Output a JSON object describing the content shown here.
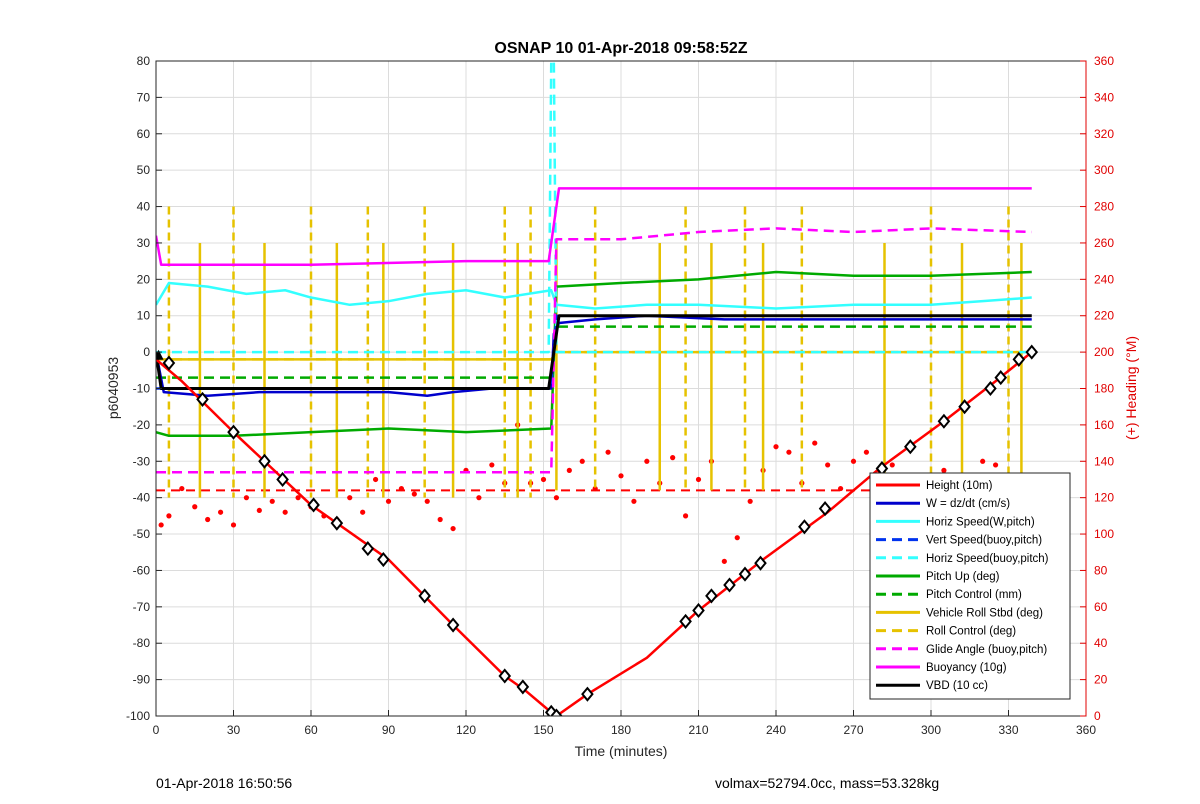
{
  "chart_data": {
    "type": "line",
    "title": "OSNAP 10 01-Apr-2018 09:58:52Z",
    "xlabel": "Time (minutes)",
    "ylabel_left": "p6040953",
    "ylabel_right": "(+) Heading (°M)",
    "xlim": [
      0,
      360
    ],
    "ylim_left": [
      -100,
      80
    ],
    "ylim_right": [
      0,
      360
    ],
    "xticks": [
      0,
      30,
      60,
      90,
      120,
      150,
      180,
      210,
      240,
      270,
      300,
      330,
      360
    ],
    "yticks_left": [
      80,
      70,
      60,
      50,
      40,
      30,
      20,
      10,
      0,
      -10,
      -20,
      -30,
      -40,
      -50,
      -60,
      -70,
      -80,
      -90,
      -100
    ],
    "yticks_right": [
      360,
      340,
      320,
      300,
      280,
      260,
      240,
      220,
      200,
      180,
      160,
      140,
      120,
      100,
      80,
      60,
      40,
      20,
      0
    ],
    "grid": true,
    "legend_position": "bottom-right",
    "series": [
      {
        "name": "Height (10m)",
        "color": "#ff0000",
        "style": "solid",
        "x": [
          0,
          10,
          30,
          60,
          90,
          115,
          135,
          143,
          153,
          155,
          167,
          190,
          210,
          235,
          260,
          280,
          305,
          325,
          339
        ],
        "y": [
          -2,
          -8,
          -22,
          -42,
          -57,
          -75,
          -89,
          -93,
          -99,
          -100,
          -94,
          -84,
          -71,
          -57,
          -44,
          -32,
          -19,
          -8,
          0
        ]
      },
      {
        "name": "W = dz/dt (cm/s)",
        "color": "#0000cc",
        "style": "solid",
        "x": [
          0,
          3,
          20,
          40,
          60,
          90,
          105,
          115,
          130,
          153,
          154,
          156,
          170,
          190,
          220,
          260,
          300,
          339
        ],
        "y": [
          0,
          -11,
          -12,
          -11,
          -11,
          -11,
          -12,
          -11,
          -10,
          -10,
          5,
          8,
          9,
          10,
          9,
          9,
          9,
          9
        ]
      },
      {
        "name": "Horiz Speed(W,pitch)",
        "color": "#33ffff",
        "style": "solid",
        "x": [
          0,
          5,
          20,
          35,
          50,
          60,
          75,
          90,
          105,
          120,
          135,
          153,
          155,
          170,
          190,
          210,
          240,
          270,
          300,
          320,
          339
        ],
        "y": [
          13,
          19,
          18,
          16,
          17,
          15,
          13,
          14,
          16,
          17,
          15,
          17,
          13,
          12,
          13,
          13,
          12,
          13,
          13,
          14,
          15
        ]
      },
      {
        "name": "Vert Speed(buoy,pitch)",
        "color": "#0033ee",
        "style": "dashed",
        "x": [
          0,
          153,
          155,
          339
        ],
        "y": [
          -10,
          -10,
          10,
          10
        ]
      },
      {
        "name": "Horiz Speed(buoy,pitch)",
        "color": "#33ffff",
        "style": "dashed",
        "x": [
          0,
          152,
          153,
          154,
          155,
          156,
          339
        ],
        "y": [
          0,
          0,
          80,
          80,
          0,
          0,
          0
        ]
      },
      {
        "name": "Pitch Up (deg)",
        "color": "#00aa00",
        "style": "solid",
        "x": [
          0,
          5,
          30,
          60,
          90,
          120,
          153,
          155,
          180,
          210,
          240,
          270,
          300,
          339
        ],
        "y": [
          -22,
          -23,
          -23,
          -22,
          -21,
          -22,
          -21,
          18,
          19,
          20,
          22,
          21,
          21,
          22
        ]
      },
      {
        "name": "Pitch Control (mm)",
        "color": "#00aa00",
        "style": "dashed",
        "x": [
          0,
          153,
          155,
          339
        ],
        "y": [
          -7,
          -7,
          7,
          7
        ]
      },
      {
        "name": "Vehicle Roll Stbd (deg)",
        "color": "#e6c200",
        "style": "solid",
        "x": [
          0,
          153,
          155,
          339
        ],
        "y": [
          -2,
          -2,
          0,
          0
        ]
      },
      {
        "name": "Roll Control (deg)",
        "color": "#e6c200",
        "style": "dashed",
        "x": [
          0,
          153,
          155,
          339
        ],
        "y": [
          -2,
          -2,
          0,
          0
        ]
      },
      {
        "name": "Glide Angle (buoy,pitch)",
        "color": "#ff00ff",
        "style": "dashed",
        "x": [
          0,
          60,
          120,
          153,
          155,
          180,
          210,
          240,
          270,
          300,
          339
        ],
        "y": [
          -33,
          -33,
          -33,
          -33,
          31,
          31,
          33,
          34,
          33,
          34,
          33
        ]
      },
      {
        "name": "Buoyancy (10g)",
        "color": "#ff00ff",
        "style": "solid",
        "x": [
          0,
          2,
          60,
          120,
          152,
          156,
          200,
          260,
          339
        ],
        "y": [
          32,
          24,
          24,
          25,
          25,
          45,
          45,
          45,
          45
        ]
      },
      {
        "name": "VBD (10 cc)",
        "color": "#000000",
        "style": "solid",
        "x": [
          0,
          2,
          60,
          120,
          152,
          156,
          200,
          260,
          339
        ],
        "y": [
          0,
          -10,
          -10,
          -10,
          -10,
          10,
          10,
          10,
          10
        ]
      }
    ],
    "heading_target_right_axis": 124,
    "heading_dots_right_axis": {
      "color": "#ff0000",
      "x": [
        2,
        5,
        10,
        15,
        20,
        25,
        30,
        35,
        40,
        45,
        50,
        55,
        60,
        65,
        70,
        75,
        80,
        85,
        90,
        95,
        100,
        105,
        110,
        115,
        120,
        125,
        130,
        135,
        140,
        145,
        150,
        155,
        160,
        165,
        170,
        175,
        180,
        185,
        190,
        195,
        200,
        205,
        210,
        215,
        220,
        225,
        230,
        235,
        240,
        245,
        250,
        255,
        260,
        265,
        270,
        275,
        280,
        285,
        290,
        295,
        300,
        305,
        310,
        315,
        320,
        325,
        330,
        335
      ],
      "y": [
        105,
        110,
        125,
        115,
        108,
        112,
        105,
        120,
        113,
        118,
        112,
        120,
        115,
        110,
        108,
        120,
        112,
        130,
        118,
        125,
        122,
        118,
        108,
        103,
        135,
        120,
        138,
        128,
        160,
        128,
        130,
        120,
        135,
        140,
        125,
        145,
        132,
        118,
        140,
        128,
        142,
        110,
        130,
        140,
        85,
        98,
        118,
        135,
        148,
        145,
        128,
        150,
        138,
        125,
        140,
        145,
        135,
        138,
        132,
        130,
        125,
        135,
        130,
        125,
        140,
        138,
        128,
        130
      ]
    },
    "markers": {
      "shape": "diamond",
      "x": [
        5,
        18,
        30,
        42,
        49,
        61,
        70,
        82,
        88,
        104,
        115,
        135,
        142,
        153,
        155,
        167,
        205,
        210,
        215,
        222,
        228,
        234,
        251,
        259,
        281,
        292,
        305,
        313,
        323,
        327,
        334,
        339
      ],
      "y": [
        -3,
        -13,
        -22,
        -30,
        -35,
        -42,
        -47,
        -54,
        -57,
        -67,
        -75,
        -89,
        -92,
        -99,
        -100,
        -94,
        -74,
        -71,
        -67,
        -64,
        -61,
        -58,
        -48,
        -43,
        -32,
        -26,
        -19,
        -15,
        -10,
        -7,
        -2,
        0
      ]
    },
    "legend": [
      "Height (10m)",
      "W = dz/dt (cm/s)",
      "Horiz Speed(W,pitch)",
      "Vert Speed(buoy,pitch)",
      "Horiz Speed(buoy,pitch)",
      "Pitch Up (deg)",
      "Pitch Control (mm)",
      "Vehicle Roll Stbd (deg)",
      "Roll Control (deg)",
      "Glide Angle (buoy,pitch)",
      "Buoyancy (10g)",
      "VBD (10 cc)"
    ],
    "roll_spike_times": [
      5,
      17,
      30,
      42,
      60,
      70,
      82,
      88,
      104,
      115,
      135,
      140,
      145,
      155,
      170,
      195,
      205,
      215,
      228,
      235,
      250,
      282,
      300,
      312,
      330,
      335
    ]
  },
  "footer": {
    "timestamp": "01-Apr-2018 16:50:56",
    "info": "volmax=52794.0cc, mass=53.328kg"
  }
}
